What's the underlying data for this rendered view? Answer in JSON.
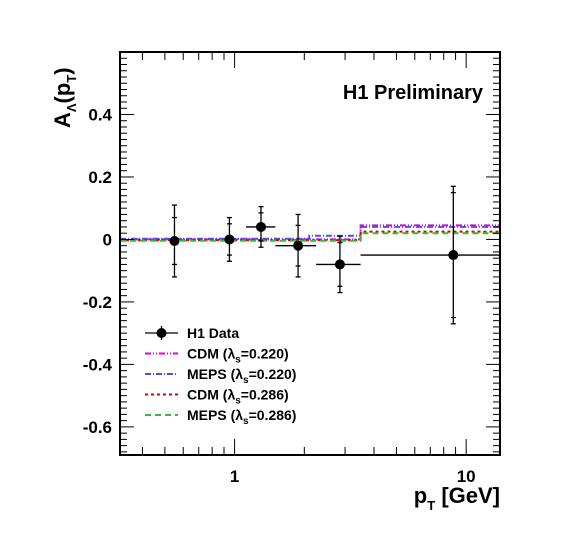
{
  "chart_data": {
    "type": "line",
    "watermark": "H1 Preliminary",
    "y_title": {
      "main": "A",
      "sub": "Λ",
      "arg_open": "(p",
      "arg_sub": "T",
      "close": ")"
    },
    "x_title": {
      "main": "p",
      "sub": "T",
      "rest": " [GeV]"
    },
    "xscale": "log",
    "xlim": [
      0.32,
      14
    ],
    "ylim": [
      -0.69,
      0.6
    ],
    "x_major_ticks": [
      {
        "value": 1,
        "label": "1"
      },
      {
        "value": 10,
        "label": "10"
      }
    ],
    "y_major_ticks": [
      {
        "value": 0.4,
        "label": "0.4"
      },
      {
        "value": 0.2,
        "label": "0.2"
      },
      {
        "value": 0,
        "label": "0"
      },
      {
        "value": -0.2,
        "label": "-0.2"
      },
      {
        "value": -0.4,
        "label": "-0.4"
      },
      {
        "value": -0.6,
        "label": "-0.6"
      }
    ],
    "data": {
      "name": "H1 Data",
      "points": [
        {
          "x": 0.55,
          "y": -0.005,
          "xerr": [
            0.55,
            0.55
          ],
          "ystat": 0.075,
          "ytot": 0.115
        },
        {
          "x": 0.95,
          "y": 0.0,
          "xerr": [
            0.95,
            0.95
          ],
          "ystat": 0.05,
          "ytot": 0.07
        },
        {
          "x": 1.3,
          "y": 0.04,
          "xerr": [
            1.12,
            1.5
          ],
          "ystat": 0.045,
          "ytot": 0.065
        },
        {
          "x": 1.88,
          "y": -0.02,
          "xerr": [
            1.5,
            2.25
          ],
          "ystat": 0.065,
          "ytot": 0.1
        },
        {
          "x": 2.85,
          "y": -0.08,
          "xerr": [
            2.25,
            3.5
          ],
          "ystat": 0.07,
          "ytot": 0.09
        },
        {
          "x": 8.8,
          "y": -0.05,
          "xerr": [
            3.5,
            14
          ],
          "ystat": 0.2,
          "ytot": 0.22
        }
      ]
    },
    "models": [
      {
        "name": "CDM (λs=0.220)",
        "label_pre": "CDM (",
        "label_lambda": "λ",
        "label_sub": "s",
        "label_post": "=0.220)",
        "color": "#e000e0",
        "dash": "6,2,1,2,1,2",
        "edges": [
          0.32,
          3.5,
          14
        ],
        "values": [
          0.0,
          0.045
        ]
      },
      {
        "name": "MEPS (λs=0.220)",
        "label_pre": "MEPS (",
        "label_lambda": "λ",
        "label_sub": "s",
        "label_post": "=0.220)",
        "color": "#5050e0",
        "dash": "6,2,1,2",
        "edges": [
          0.32,
          2.1,
          3.5,
          14
        ],
        "values": [
          0.002,
          0.012,
          0.04
        ]
      },
      {
        "name": "CDM (λs=0.286)",
        "label_pre": "CDM (",
        "label_lambda": "λ",
        "label_sub": "s",
        "label_post": "=0.286)",
        "color": "#e00000",
        "dash": "3,3",
        "edges": [
          0.32,
          3.5,
          14
        ],
        "values": [
          -0.002,
          0.025
        ]
      },
      {
        "name": "MEPS (λs=0.286)",
        "label_pre": "MEPS (",
        "label_lambda": "λ",
        "label_sub": "s",
        "label_post": "=0.286)",
        "color": "#30c030",
        "dash": "6,4",
        "edges": [
          0.32,
          3.5,
          14
        ],
        "values": [
          -0.004,
          0.02
        ]
      }
    ],
    "legend_position": "bottom-left",
    "grid": false
  }
}
